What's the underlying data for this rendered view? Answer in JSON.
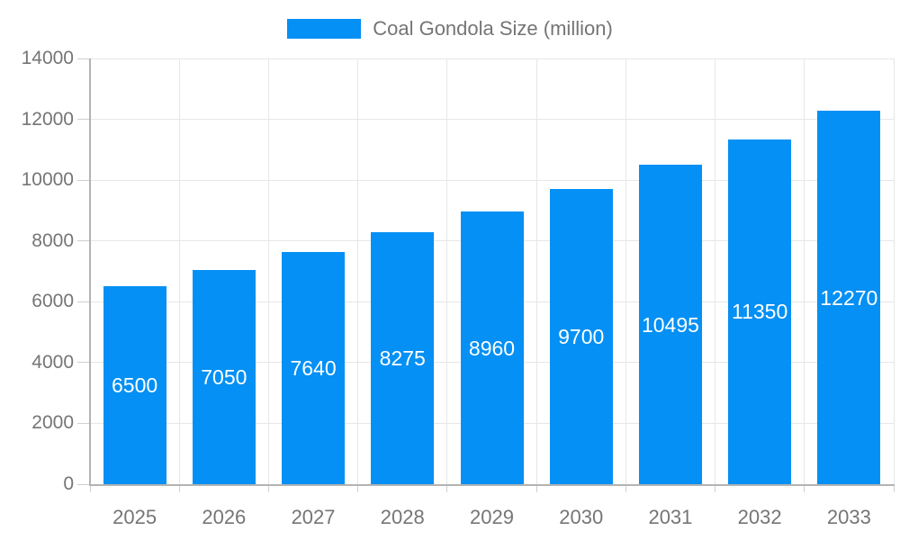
{
  "chart_data": {
    "type": "bar",
    "title": "",
    "categories": [
      "2025",
      "2026",
      "2027",
      "2028",
      "2029",
      "2030",
      "2031",
      "2032",
      "2033"
    ],
    "series": [
      {
        "name": "Coal Gondola Size (million)",
        "values": [
          6500,
          7050,
          7640,
          8275,
          8960,
          9700,
          10495,
          11350,
          12270
        ]
      }
    ],
    "value_labels": [
      "6500",
      "7050",
      "7640",
      "8275",
      "8960",
      "9700",
      "10495",
      "11350",
      "12270"
    ],
    "xlabel": "",
    "ylabel": "",
    "ylim": [
      0,
      14000
    ],
    "yticks": [
      0,
      2000,
      4000,
      6000,
      8000,
      10000,
      12000,
      14000
    ],
    "ytick_labels": [
      "0",
      "2000",
      "4000",
      "6000",
      "8000",
      "10000",
      "12000",
      "14000"
    ],
    "grid": "on",
    "legend": {
      "position": "top-center",
      "label": "Coal Gondola Size (million)"
    },
    "colors": {
      "bar": "#0490f4",
      "value_label_text": "#ffffff",
      "axis_text": "#757575",
      "axis_line": "#b3b3b3",
      "gridline": "#e6e6e6",
      "tick": "#cfcfcf",
      "background": "#ffffff"
    }
  }
}
